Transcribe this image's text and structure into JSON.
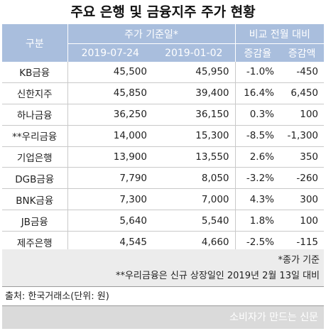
{
  "title": "주요 은행 및 금융지주 주가 현황",
  "table": {
    "headers": {
      "category": "구분",
      "price_group": "주가 기준일*",
      "compare_group": "비교 전월 대비",
      "date1": "2019-07-24",
      "date2": "2019-01-02",
      "rate": "증감율",
      "amount": "증감액"
    },
    "rows": [
      {
        "name": "KB금융",
        "p1": "45,500",
        "p2": "45,950",
        "rate": "-1.0%",
        "amount": "-450"
      },
      {
        "name": "신한지주",
        "p1": "45,850",
        "p2": "39,400",
        "rate": "16.4%",
        "amount": "6,450"
      },
      {
        "name": "하나금융",
        "p1": "36,250",
        "p2": "36,150",
        "rate": "0.3%",
        "amount": "100"
      },
      {
        "name": "**우리금융",
        "p1": "14,000",
        "p2": "15,300",
        "rate": "-8.5%",
        "amount": "-1,300"
      },
      {
        "name": "기업은행",
        "p1": "13,900",
        "p2": "13,550",
        "rate": "2.6%",
        "amount": "350"
      },
      {
        "name": "DGB금융",
        "p1": "7,790",
        "p2": "8,050",
        "rate": "-3.2%",
        "amount": "-260"
      },
      {
        "name": "BNK금융",
        "p1": "7,300",
        "p2": "7,000",
        "rate": "4.3%",
        "amount": "300"
      },
      {
        "name": "JB금융",
        "p1": "5,640",
        "p2": "5,540",
        "rate": "1.8%",
        "amount": "100"
      },
      {
        "name": "제주은행",
        "p1": "4,545",
        "p2": "4,660",
        "rate": "-2.5%",
        "amount": "-115"
      }
    ]
  },
  "notes": {
    "note1": "*종가 기준",
    "note2": "**우리금융은 신규 상장일인 2019년 2월 13일 대비"
  },
  "source": "출처: 한국거래소(단위: 원)",
  "footer": "소비자가 만드는 신문"
}
